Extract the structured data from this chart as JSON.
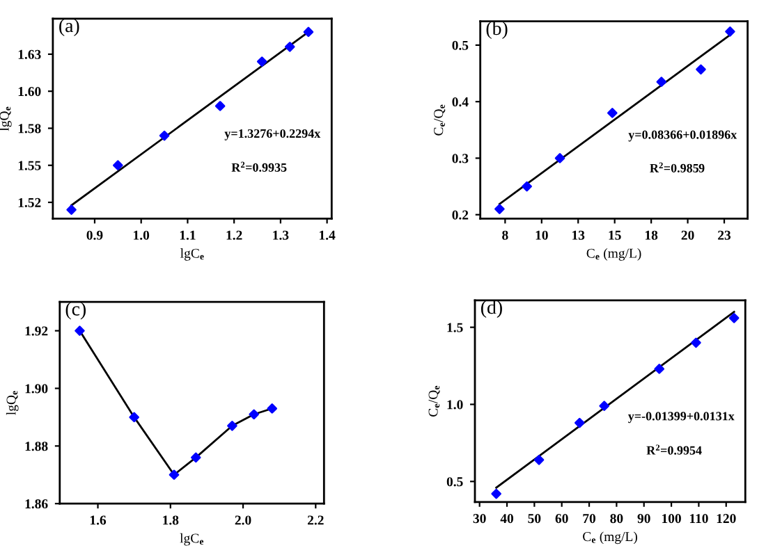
{
  "chart_data": [
    {
      "type": "scatter",
      "title": "(a)",
      "xlabel": "lgC$_{e}$",
      "ylabel": "lgQ$_{e}$",
      "annotations": [
        "y=1.3276+0.2294x",
        "R$^{2}$=0.9935"
      ],
      "xlim": [
        0.81,
        1.41
      ],
      "ylim": [
        1.514,
        1.649
      ],
      "xticks": [
        0.9,
        {
          "value": 1.0,
          "label": "1.0"
        },
        1.1,
        1.2,
        1.3,
        1.4
      ],
      "yticks": [
        {
          "value": 1.525,
          "label": "1.52"
        },
        {
          "value": 1.55,
          "label": "1.55"
        },
        {
          "value": 1.575,
          "label": "1.58"
        },
        {
          "value": 1.6,
          "label": "1.60"
        },
        {
          "value": 1.625,
          "label": "1.63"
        }
      ],
      "grid": false,
      "legend": false,
      "series": [
        {
          "marker": "diamond",
          "color": "#0000ff",
          "x": [
            0.85,
            0.95,
            1.05,
            1.17,
            1.26,
            1.32,
            1.36
          ],
          "values": [
            1.52,
            1.55,
            1.57,
            1.59,
            1.62,
            1.63,
            1.64
          ]
        },
        {
          "type": "line",
          "color": "#000000",
          "x": [
            0.85,
            1.36
          ],
          "values": [
            1.523,
            1.64
          ]
        }
      ]
    },
    {
      "type": "scatter",
      "title": "(b)",
      "xlabel": "C$_{e}$ (mg/L)",
      "ylabel": "C$_{e}$/Q$_{e}$",
      "annotations": [
        "y=0.08366+0.01896x",
        "R$^{2}$=0.9859"
      ],
      "xlim": [
        5.8,
        24.1
      ],
      "ylim": [
        0.193,
        0.542
      ],
      "xticks": [
        {
          "value": 7.5,
          "label": "8"
        },
        10,
        {
          "value": 12.5,
          "label": "13"
        },
        15,
        {
          "value": 17.5,
          "label": "18"
        },
        20,
        {
          "value": 22.5,
          "label": "23"
        }
      ],
      "yticks": [
        0.2,
        0.3,
        0.4,
        0.5
      ],
      "grid": false,
      "legend": false,
      "series": [
        {
          "marker": "diamond",
          "color": "#0000ff",
          "x": [
            7.12,
            8.99,
            11.25,
            14.84,
            18.2,
            20.9,
            22.9
          ],
          "values": [
            0.21,
            0.25,
            0.3,
            0.38,
            0.435,
            0.457,
            0.524
          ]
        },
        {
          "type": "line",
          "color": "#000000",
          "x": [
            7.12,
            22.9
          ],
          "values": [
            0.219,
            0.518
          ]
        }
      ]
    },
    {
      "type": "scatter",
      "title": "(c)",
      "xlabel": "lgC$_{e}$",
      "ylabel": "lgQ$_{e}$",
      "xlim": [
        1.495,
        2.223
      ],
      "ylim": [
        1.86,
        1.93
      ],
      "xticks": [
        1.6,
        1.8,
        {
          "value": 2.0,
          "label": "2.0"
        },
        2.2
      ],
      "yticks": [
        1.86,
        1.88,
        {
          "value": 1.9,
          "label": "1.90"
        },
        1.92
      ],
      "grid": false,
      "legend": false,
      "series": [
        {
          "type": "line",
          "color": "#000000",
          "x": [
            1.55,
            1.7,
            1.81,
            1.87,
            1.97,
            2.03,
            2.08
          ],
          "values": [
            1.92,
            1.89,
            1.87,
            1.876,
            1.887,
            1.891,
            1.893
          ]
        },
        {
          "marker": "diamond",
          "color": "#0000ff",
          "x": [
            1.55,
            1.7,
            1.81,
            1.87,
            1.97,
            2.03,
            2.08
          ],
          "values": [
            1.92,
            1.89,
            1.87,
            1.876,
            1.887,
            1.891,
            1.893
          ]
        }
      ]
    },
    {
      "type": "scatter",
      "title": "(d)",
      "xlabel": "C$_{e}$ (mg/L)",
      "ylabel": "C$_{e}$/Q$_{e}$",
      "annotations": [
        "y=-0.01399+0.0131x",
        "R$^{2}$=0.9954"
      ],
      "xlim": [
        28.3,
        127
      ],
      "ylim": [
        0.367,
        1.675
      ],
      "xticks": [
        30,
        40,
        50,
        60,
        70,
        80,
        90,
        100,
        110,
        120
      ],
      "yticks": [
        0.5,
        {
          "value": 1.0,
          "label": "1.0"
        },
        1.5
      ],
      "grid": false,
      "legend": false,
      "series": [
        {
          "marker": "diamond",
          "color": "#0000ff",
          "x": [
            36.1,
            51.7,
            66.5,
            75.5,
            95.6,
            109,
            122.9
          ],
          "values": [
            0.42,
            0.64,
            0.88,
            0.99,
            1.23,
            1.4,
            1.56
          ]
        },
        {
          "type": "line",
          "color": "#000000",
          "x": [
            36.1,
            122.9
          ],
          "values": [
            0.46,
            1.6
          ]
        }
      ]
    }
  ]
}
